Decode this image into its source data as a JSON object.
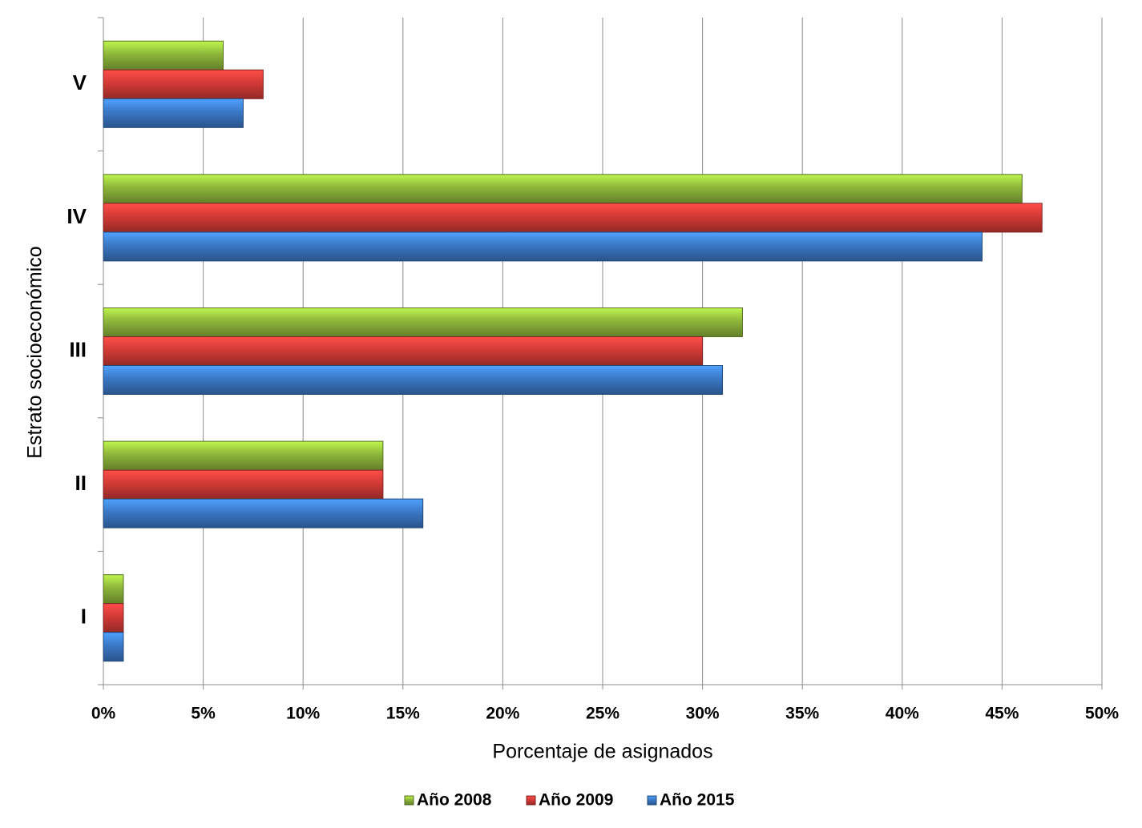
{
  "chart_data": {
    "type": "hbar",
    "categories": [
      "I",
      "II",
      "III",
      "IV",
      "V"
    ],
    "series": [
      {
        "name": "Año 2008",
        "color": "#8db63a",
        "values": [
          1,
          14,
          32,
          46,
          6
        ]
      },
      {
        "name": "Año 2009",
        "color": "#d33a36",
        "values": [
          1,
          14,
          30,
          47,
          8
        ]
      },
      {
        "name": "Año 2015",
        "color": "#3a78c6",
        "values": [
          1,
          16,
          31,
          44,
          7
        ]
      }
    ],
    "xlim": [
      0,
      50
    ],
    "xticks": [
      {
        "value": 0,
        "label": "0%"
      },
      {
        "value": 5,
        "label": "5%"
      },
      {
        "value": 10,
        "label": "10%"
      },
      {
        "value": 15,
        "label": "15%"
      },
      {
        "value": 20,
        "label": "20%"
      },
      {
        "value": 25,
        "label": "25%"
      },
      {
        "value": 30,
        "label": "30%"
      },
      {
        "value": 35,
        "label": "35%"
      },
      {
        "value": 40,
        "label": "40%"
      },
      {
        "value": 45,
        "label": "45%"
      },
      {
        "value": 50,
        "label": "50%"
      }
    ],
    "x_label": "Porcentaje de asignados",
    "y_label": "Estrato socioeconómico",
    "grid": true,
    "legend": "bottom"
  }
}
